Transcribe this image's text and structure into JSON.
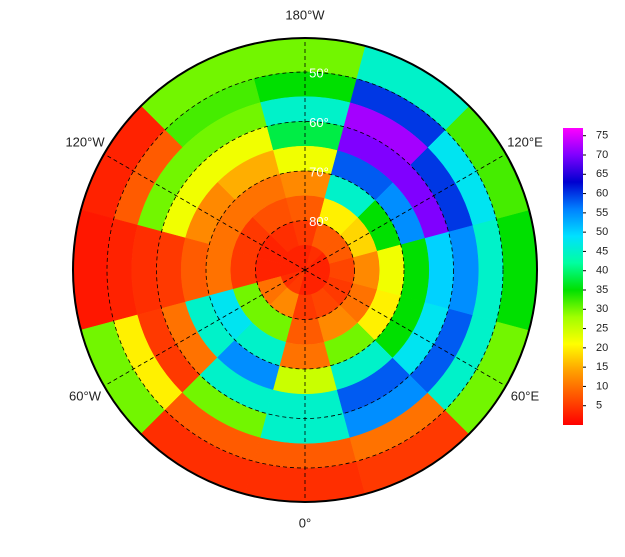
{
  "map": {
    "lon_labels": [
      {
        "value": -180,
        "label": "180°W"
      },
      {
        "value": -120,
        "label": "120°W"
      },
      {
        "value": -60,
        "label": "60°W"
      },
      {
        "value": 0,
        "label": "0°"
      },
      {
        "value": 60,
        "label": "60°E"
      },
      {
        "value": 120,
        "label": "120°E"
      }
    ],
    "lat_labels": [
      {
        "value": 50,
        "label": "50°"
      },
      {
        "value": 60,
        "label": "60°"
      },
      {
        "value": 70,
        "label": "70°"
      },
      {
        "value": 80,
        "label": "80°"
      }
    ],
    "values": [
      [
        4,
        5,
        30,
        35,
        32,
        45,
        30,
        30,
        3,
        2,
        30,
        4
      ],
      [
        8,
        10,
        45,
        45,
        48,
        60,
        35,
        32,
        8,
        3,
        20,
        8
      ],
      [
        45,
        55,
        58,
        55,
        60,
        72,
        45,
        30,
        30,
        4,
        5,
        30
      ],
      [
        45,
        58,
        48,
        50,
        70,
        70,
        38,
        22,
        22,
        5,
        10,
        45
      ],
      [
        25,
        45,
        35,
        35,
        55,
        58,
        22,
        15,
        12,
        8,
        45,
        55
      ],
      [
        10,
        30,
        20,
        22,
        35,
        45,
        12,
        10,
        10,
        10,
        48,
        45
      ],
      [
        8,
        12,
        10,
        12,
        18,
        20,
        8,
        7,
        5,
        5,
        30,
        30
      ],
      [
        5,
        6,
        5,
        6,
        8,
        8,
        5,
        4,
        3,
        3,
        10,
        12
      ],
      [
        3,
        3,
        3,
        3,
        3,
        4,
        3,
        3,
        3,
        3,
        4,
        5
      ]
    ],
    "colorbar": {
      "lim": [
        0,
        77
      ],
      "ticks": [
        5,
        10,
        15,
        20,
        25,
        30,
        35,
        40,
        45,
        50,
        55,
        60,
        65,
        70,
        75
      ],
      "colormap": [
        "#ff0000",
        "#ff5000",
        "#ffa000",
        "#ffff00",
        "#a0ff00",
        "#00e000",
        "#00ffa0",
        "#00e0ff",
        "#0080ff",
        "#0000d0",
        "#8000ff",
        "#ff00ff"
      ]
    }
  }
}
